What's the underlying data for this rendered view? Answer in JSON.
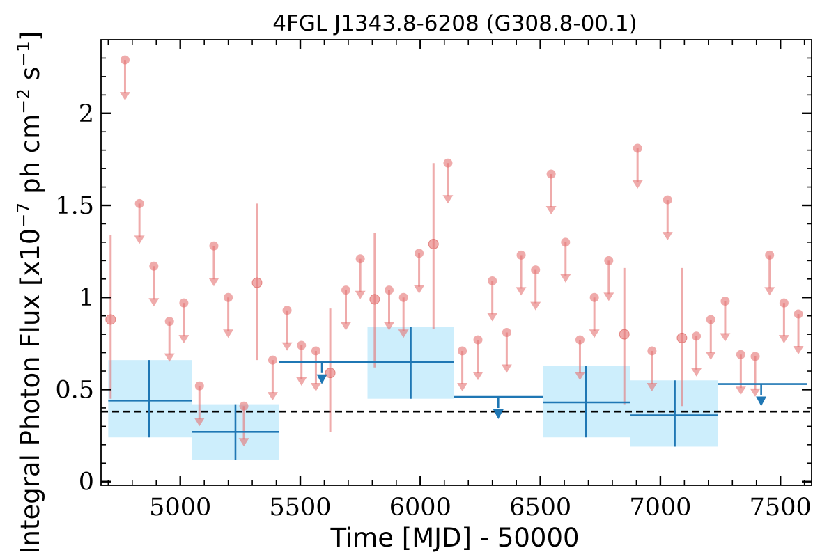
{
  "chart_data": {
    "type": "scatter",
    "title": "4FGL J1343.8-6208 (G308.8-00.1)",
    "xlabel": "Time [MJD] - 50000",
    "ylabel": "Integral Photon Flux [x10$^{-7}$ ph cm$^{-2}$ s$^{-1}$]",
    "ylabel_parts": {
      "main": "Integral Photon Flux [x10",
      "exp1": "−7",
      "mid": " ph cm",
      "exp2": "−2",
      "mid2": " s",
      "exp3": "−1",
      "end": "]"
    },
    "xlim": [
      4670,
      7630
    ],
    "ylim": [
      -0.02,
      2.4
    ],
    "x_ticks": [
      5000,
      5500,
      6000,
      6500,
      7000,
      7500
    ],
    "x_tick_labels": [
      "5000",
      "5500",
      "6000",
      "6500",
      "7000",
      "7500"
    ],
    "y_ticks": [
      0,
      0.5,
      1,
      1.5,
      2
    ],
    "y_tick_labels": [
      "0",
      "0.5",
      "1",
      "1.5",
      "2"
    ],
    "reference_line": {
      "y": 0.38,
      "style": "dashed",
      "color": "#000000"
    },
    "colors": {
      "fine": "#e57373",
      "coarse_line": "#1f77b4",
      "coarse_band": "#cdeefc"
    },
    "series": [
      {
        "bin": "fine",
        "detections": [
          {
            "x": 4710,
            "y": 0.88,
            "ylo": 0.45,
            "yhi": 1.34
          },
          {
            "x": 5320,
            "y": 1.08,
            "ylo": 0.66,
            "yhi": 1.51
          },
          {
            "x": 5625,
            "y": 0.59,
            "ylo": 0.27,
            "yhi": 0.94
          },
          {
            "x": 5810,
            "y": 0.99,
            "ylo": 0.62,
            "yhi": 1.35
          },
          {
            "x": 6055,
            "y": 1.29,
            "ylo": 0.83,
            "yhi": 1.73
          },
          {
            "x": 6850,
            "y": 0.8,
            "ylo": 0.42,
            "yhi": 1.16
          },
          {
            "x": 7090,
            "y": 0.78,
            "ylo": 0.41,
            "yhi": 1.16
          }
        ],
        "upper_limits": [
          {
            "x": 4770,
            "y": 2.29
          },
          {
            "x": 4830,
            "y": 1.51
          },
          {
            "x": 4890,
            "y": 1.17
          },
          {
            "x": 4955,
            "y": 0.87
          },
          {
            "x": 5015,
            "y": 0.97
          },
          {
            "x": 5080,
            "y": 0.52
          },
          {
            "x": 5140,
            "y": 1.28
          },
          {
            "x": 5200,
            "y": 1.0
          },
          {
            "x": 5265,
            "y": 0.41
          },
          {
            "x": 5385,
            "y": 0.66
          },
          {
            "x": 5445,
            "y": 0.93
          },
          {
            "x": 5505,
            "y": 0.74
          },
          {
            "x": 5565,
            "y": 0.71
          },
          {
            "x": 5690,
            "y": 1.04
          },
          {
            "x": 5750,
            "y": 1.21
          },
          {
            "x": 5870,
            "y": 1.04
          },
          {
            "x": 5930,
            "y": 1.0
          },
          {
            "x": 5995,
            "y": 1.24
          },
          {
            "x": 6115,
            "y": 1.73
          },
          {
            "x": 6175,
            "y": 0.71
          },
          {
            "x": 6240,
            "y": 0.77
          },
          {
            "x": 6300,
            "y": 1.09
          },
          {
            "x": 6360,
            "y": 0.81
          },
          {
            "x": 6420,
            "y": 1.23
          },
          {
            "x": 6480,
            "y": 1.15
          },
          {
            "x": 6545,
            "y": 1.67
          },
          {
            "x": 6605,
            "y": 1.3
          },
          {
            "x": 6665,
            "y": 0.77
          },
          {
            "x": 6725,
            "y": 1.0
          },
          {
            "x": 6785,
            "y": 1.2
          },
          {
            "x": 6905,
            "y": 1.81
          },
          {
            "x": 6965,
            "y": 0.71
          },
          {
            "x": 7030,
            "y": 1.53
          },
          {
            "x": 7150,
            "y": 0.79
          },
          {
            "x": 7210,
            "y": 0.88
          },
          {
            "x": 7270,
            "y": 0.98
          },
          {
            "x": 7335,
            "y": 0.69
          },
          {
            "x": 7395,
            "y": 0.68
          },
          {
            "x": 7455,
            "y": 1.23
          },
          {
            "x": 7515,
            "y": 0.97
          },
          {
            "x": 7575,
            "y": 0.91
          }
        ]
      },
      {
        "bin": "coarse",
        "detections": [
          {
            "x0": 4700,
            "x1": 5050,
            "xc": 4870,
            "y": 0.44,
            "ylo": 0.24,
            "yhi": 0.66
          },
          {
            "x0": 5050,
            "x1": 5410,
            "xc": 5230,
            "y": 0.27,
            "ylo": 0.12,
            "yhi": 0.42
          },
          {
            "x0": 5780,
            "x1": 6140,
            "xc": 5960,
            "y": 0.65,
            "ylo": 0.45,
            "yhi": 0.84
          },
          {
            "x0": 6510,
            "x1": 6875,
            "xc": 6690,
            "y": 0.43,
            "ylo": 0.24,
            "yhi": 0.63
          },
          {
            "x0": 6875,
            "x1": 7240,
            "xc": 7060,
            "y": 0.36,
            "ylo": 0.19,
            "yhi": 0.55
          }
        ],
        "upper_limits": [
          {
            "x0": 5410,
            "x1": 5780,
            "xc": 5590,
            "y": 0.65
          },
          {
            "x0": 6140,
            "x1": 6510,
            "xc": 6325,
            "y": 0.46
          },
          {
            "x0": 7240,
            "x1": 7610,
            "xc": 7420,
            "y": 0.53
          }
        ]
      }
    ]
  }
}
